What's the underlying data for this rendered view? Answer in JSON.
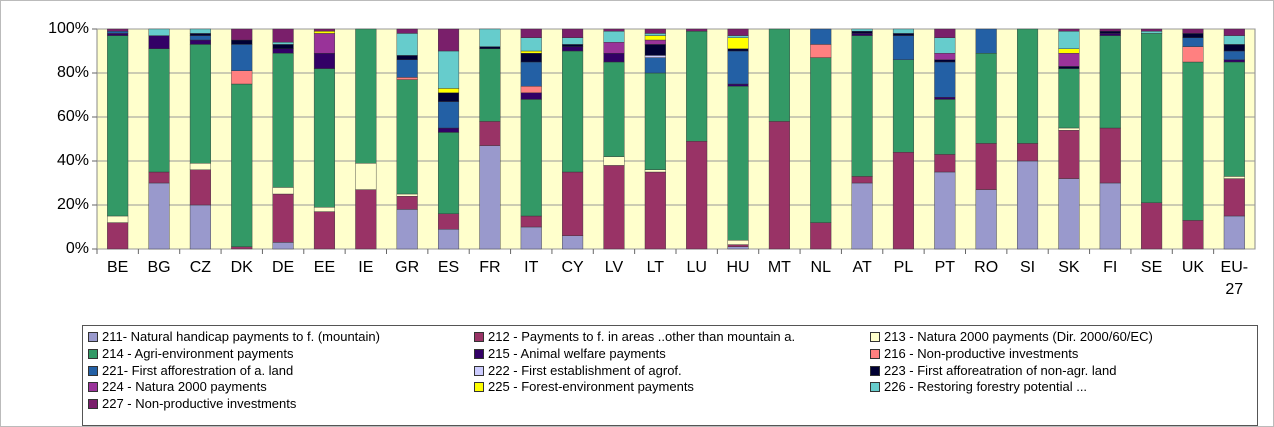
{
  "chart_data": {
    "type": "stacked_bar",
    "categories": [
      "BE",
      "BG",
      "CZ",
      "DK",
      "DE",
      "EE",
      "IE",
      "GR",
      "ES",
      "FR",
      "IT",
      "CY",
      "LV",
      "LT",
      "LU",
      "HU",
      "MT",
      "NL",
      "AT",
      "PL",
      "PT",
      "RO",
      "SI",
      "SK",
      "FI",
      "SE",
      "UK",
      "EU-27"
    ],
    "ylim": [
      0,
      100
    ],
    "yticks": [
      {
        "value": 0,
        "label": "0%"
      },
      {
        "value": 20,
        "label": "20%"
      },
      {
        "value": 40,
        "label": "40%"
      },
      {
        "value": 60,
        "label": "60%"
      },
      {
        "value": 80,
        "label": "80%"
      },
      {
        "value": 100,
        "label": "100%"
      }
    ],
    "grid": true,
    "legend": "bottom",
    "series": [
      {
        "name": "211- Natural handicap payments to f. (mountain)",
        "color": "#9999cc",
        "values": [
          0,
          30,
          20,
          0,
          3,
          0,
          0,
          18,
          9,
          47,
          10,
          6,
          0,
          0,
          0,
          1,
          0,
          0,
          30,
          0,
          35,
          27,
          40,
          32,
          30,
          0,
          0,
          15
        ]
      },
      {
        "name": "212 - Payments to f. in areas ..other than mountain a.",
        "color": "#993366",
        "values": [
          12,
          5,
          16,
          1,
          22,
          17,
          27,
          6,
          7,
          11,
          5,
          29,
          38,
          35,
          49,
          1,
          58,
          12,
          3,
          44,
          8,
          21,
          8,
          22,
          25,
          21,
          13,
          17
        ]
      },
      {
        "name": "213 - Natura 2000 payments (Dir. 2000/60/EC)",
        "color": "#ffffcc",
        "values": [
          3,
          0,
          3,
          0,
          3,
          2,
          12,
          1,
          0,
          0,
          0,
          0,
          4,
          1,
          0,
          2,
          0,
          0,
          0,
          0,
          0,
          0,
          0,
          1,
          0,
          0,
          0,
          1
        ]
      },
      {
        "name": "214 - Agri-environment payments",
        "color": "#339966",
        "values": [
          82,
          56,
          54,
          74,
          61,
          63,
          61,
          52,
          37,
          33,
          53,
          55,
          43,
          44,
          50,
          70,
          42,
          75,
          64,
          42,
          25,
          41,
          52,
          27,
          42,
          77,
          72,
          52
        ]
      },
      {
        "name": "215 - Animal welfare payments",
        "color": "#330066",
        "values": [
          1,
          6,
          2,
          0,
          2,
          7,
          0,
          0,
          2,
          0,
          3,
          2,
          4,
          0,
          0,
          1,
          0,
          0,
          1,
          0,
          1,
          0,
          0,
          0,
          1,
          0,
          0,
          1
        ]
      },
      {
        "name": "216 - Non-productive investments",
        "color": "#ff8080",
        "values": [
          0,
          0,
          0,
          6,
          0,
          0,
          0,
          1,
          0,
          0,
          3,
          0,
          0,
          0,
          0,
          0,
          0,
          6,
          0,
          0,
          0,
          0,
          0,
          0,
          0,
          0,
          7,
          0
        ]
      },
      {
        "name": "221- First afforestration of a. land",
        "color": "#2360a5",
        "values": [
          1,
          0,
          2,
          12,
          0,
          0,
          0,
          8,
          12,
          0,
          11,
          0,
          0,
          7,
          0,
          15,
          0,
          7,
          0,
          11,
          16,
          11,
          0,
          0,
          0,
          0,
          4,
          4
        ]
      },
      {
        "name": "222 - First establishment of agrof.",
        "color": "#ccccff",
        "values": [
          0,
          0,
          0,
          0,
          0,
          0,
          0,
          0,
          0,
          0,
          0,
          0,
          0,
          1,
          0,
          0,
          0,
          0,
          0,
          0,
          0,
          0,
          0,
          0,
          0,
          0,
          0,
          0
        ]
      },
      {
        "name": "223 - First afforeatration of non-agr. land",
        "color": "#000033",
        "values": [
          0,
          0,
          1,
          2,
          2,
          0,
          0,
          2,
          4,
          1,
          4,
          1,
          0,
          5,
          0,
          1,
          0,
          0,
          1,
          1,
          1,
          0,
          0,
          1,
          1,
          0,
          2,
          3
        ]
      },
      {
        "name": "224 - Natura 2000 payments",
        "color": "#993399",
        "values": [
          0,
          0,
          0,
          0,
          0,
          9,
          0,
          0,
          0,
          0,
          0,
          0,
          5,
          2,
          0,
          0,
          0,
          0,
          0,
          0,
          3,
          0,
          0,
          6,
          0,
          0,
          0,
          0
        ]
      },
      {
        "name": "225 - Forest-environment payments",
        "color": "#ffff00",
        "values": [
          0,
          0,
          0,
          0,
          0,
          1,
          0,
          0,
          2,
          0,
          1,
          0,
          0,
          2,
          0,
          5,
          0,
          0,
          0,
          0,
          0,
          0,
          0,
          2,
          0,
          0,
          0,
          0
        ]
      },
      {
        "name": "226 - Restoring forestry potential ...",
        "color": "#66cccc",
        "values": [
          0,
          3,
          2,
          0,
          1,
          0,
          0,
          10,
          17,
          8,
          6,
          3,
          5,
          1,
          0,
          1,
          0,
          0,
          1,
          2,
          7,
          0,
          0,
          8,
          0,
          1,
          0,
          4
        ]
      },
      {
        "name": "227 - Non-productive investments",
        "color": "#7a1f6b",
        "values": [
          1,
          0,
          0,
          5,
          6,
          1,
          0,
          2,
          10,
          0,
          4,
          4,
          1,
          2,
          1,
          3,
          0,
          0,
          0,
          0,
          4,
          0,
          0,
          1,
          1,
          1,
          2,
          3
        ]
      }
    ]
  }
}
